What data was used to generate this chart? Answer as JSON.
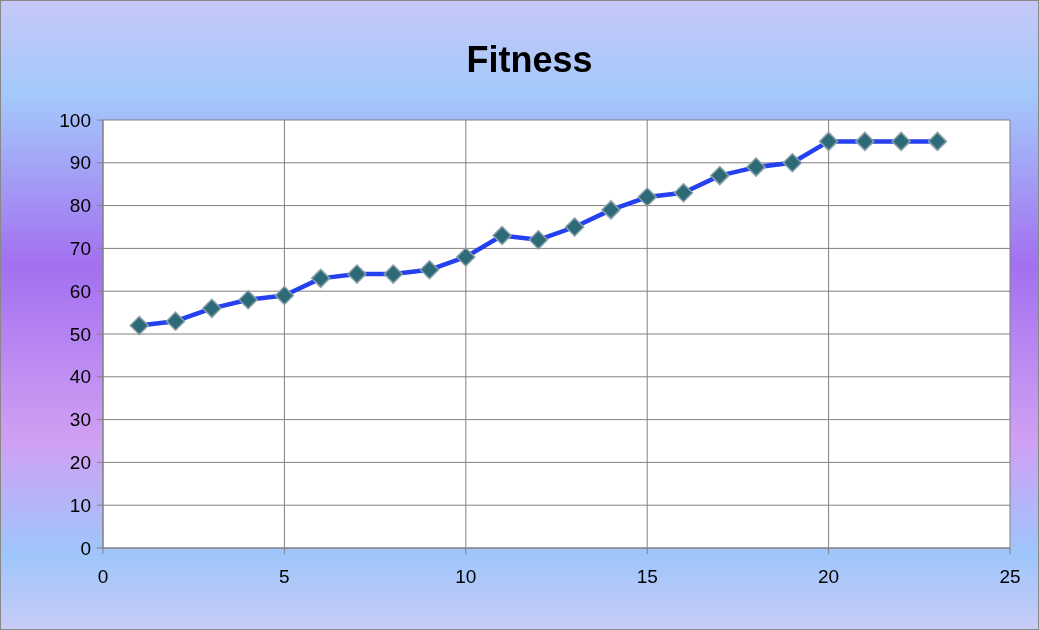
{
  "chart_data": {
    "type": "line",
    "title": "Fitness",
    "x": [
      1,
      2,
      3,
      4,
      5,
      6,
      7,
      8,
      9,
      10,
      11,
      12,
      13,
      14,
      15,
      16,
      17,
      18,
      19,
      20,
      21,
      22,
      23
    ],
    "series": [
      {
        "color": "#2440f0",
        "values": [
          52,
          53,
          56,
          58,
          59,
          63,
          64,
          64,
          65,
          68,
          73,
          72,
          75,
          79,
          82,
          83,
          87,
          89,
          90,
          95,
          95,
          95,
          95
        ]
      }
    ],
    "xlim": [
      0,
      25
    ],
    "xticks": [
      0,
      5,
      10,
      15,
      20,
      25
    ],
    "ylim": [
      0,
      100
    ],
    "yticks": [
      0,
      10,
      20,
      30,
      40,
      50,
      60,
      70,
      80,
      90,
      100
    ],
    "grid": true,
    "marker": "diamond",
    "line_style": "solid"
  }
}
